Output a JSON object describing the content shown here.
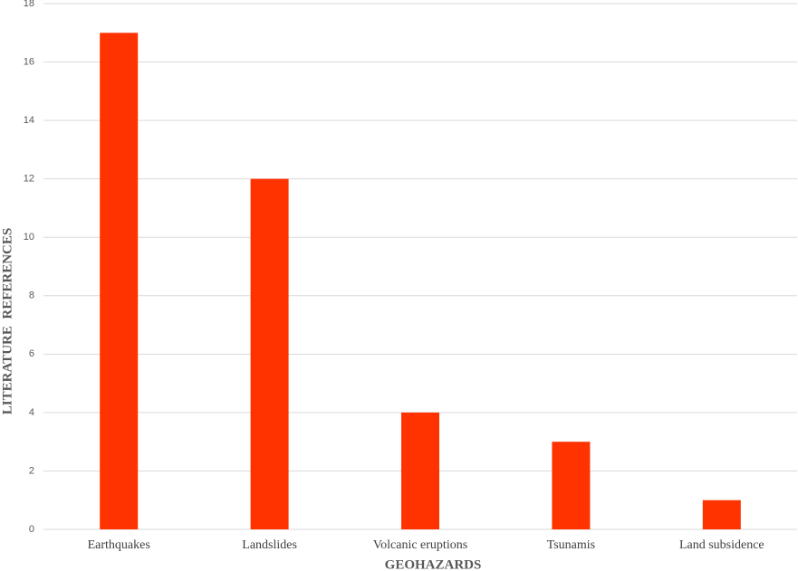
{
  "chart_data": {
    "type": "bar",
    "categories": [
      "Earthquakes",
      "Landslides",
      "Volcanic eruptions",
      "Tsunamis",
      "Land subsidence"
    ],
    "values": [
      17,
      12,
      4,
      3,
      1
    ],
    "color": "#ff3300",
    "xlabel": "GEOHAZARDS",
    "ylabel": "LITERATURE  REFERENCES",
    "ylim": [
      0,
      18
    ],
    "yticks": [
      0,
      2,
      4,
      6,
      8,
      10,
      12,
      14,
      16,
      18
    ],
    "grid": true
  }
}
